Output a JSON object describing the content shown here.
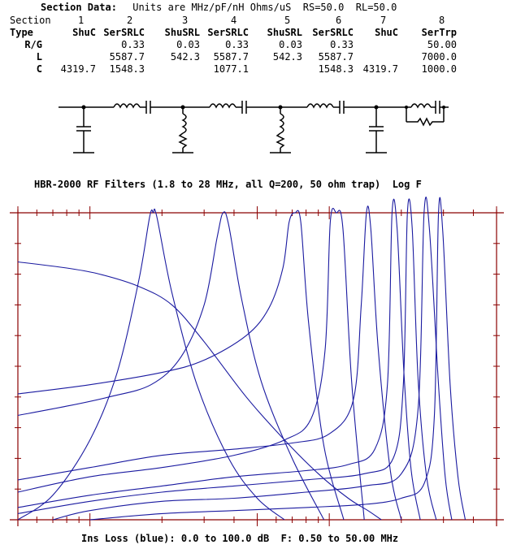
{
  "header": {
    "title_label": "Section Data:",
    "title_rest": " Units are MHz/pF/nH Ohms/uS  RS=50.0  RL=50.0"
  },
  "table": {
    "rows": [
      {
        "label": "Section",
        "cells": [
          "1",
          "2",
          "3",
          "4",
          "5",
          "6",
          "7",
          "8"
        ]
      },
      {
        "label": "Type",
        "cells": [
          "ShuC",
          "SerSRLC",
          "ShuSRL",
          "SerSRLC",
          "ShuSRL",
          "SerSRLC",
          "ShuC",
          "SerTrp"
        ]
      },
      {
        "label": "R/G",
        "cells": [
          "",
          "0.33",
          "0.03",
          "0.33",
          "0.03",
          "0.33",
          "",
          "50.00"
        ]
      },
      {
        "label": "L",
        "cells": [
          "",
          "5587.7",
          "542.3",
          "5587.7",
          "542.3",
          "5587.7",
          "",
          "7000.0"
        ]
      },
      {
        "label": "C",
        "cells": [
          "4319.7",
          "1548.3",
          "",
          "1077.1",
          "",
          "1548.3",
          "4319.7",
          "1000.0"
        ]
      }
    ]
  },
  "chart_data": {
    "type": "line",
    "title": "HBR-2000 RF Filters (1.8 to 28 MHz, all Q=200, 50 ohm trap)  Log F",
    "footer": "Ins Loss (blue): 0.0 to 100.0 dB  F: 0.50 to 50.00 MHz",
    "x_scale": "log",
    "xlim": [
      0.5,
      50.0
    ],
    "ylim": [
      0,
      100
    ],
    "ylabel_meaning": "Insertion loss (dB), 0 at top, 100 at bottom",
    "grid": false,
    "line_color": "#1a1aa0",
    "frame_color": "#8b0000",
    "series": [
      {
        "x": [
          0.5,
          0.7,
          1.0,
          1.3,
          1.6,
          1.78,
          1.84,
          1.9,
          2.2,
          2.8,
          3.8,
          5.0,
          6.5
        ],
        "y": [
          100,
          92,
          74,
          52,
          22,
          1,
          0,
          1,
          26,
          56,
          80,
          93,
          100
        ]
      },
      {
        "x": [
          0.5,
          0.8,
          1.2,
          1.8,
          2.4,
          3.0,
          3.4,
          3.6,
          3.8,
          4.3,
          5.2,
          7.0,
          9.5
        ],
        "y": [
          66,
          63,
          60,
          56,
          47,
          30,
          8,
          0,
          4,
          28,
          55,
          80,
          100
        ]
      },
      {
        "x": [
          0.5,
          1.0,
          2.0,
          3.0,
          4.5,
          5.6,
          6.4,
          6.8,
          7.2,
          7.6,
          8.2,
          9.5,
          11.5
        ],
        "y": [
          59,
          56,
          52,
          48,
          40,
          31,
          18,
          3,
          0,
          3,
          36,
          76,
          100
        ]
      },
      {
        "x": [
          0.5,
          1.0,
          2.0,
          4.0,
          6.5,
          8.4,
          9.6,
          10.1,
          10.7,
          11.4,
          12.4,
          14.0
        ],
        "y": [
          91,
          86,
          83,
          79,
          74,
          67,
          45,
          3,
          0,
          5,
          55,
          100
        ]
      },
      {
        "x": [
          0.5,
          1.0,
          2.0,
          4.0,
          7.0,
          10.0,
          12.6,
          13.6,
          14.3,
          14.9,
          16.0,
          18.0,
          20.0
        ],
        "y": [
          87,
          83,
          79,
          77,
          75,
          72,
          61,
          30,
          0,
          5,
          44,
          84,
          100
        ]
      },
      {
        "x": [
          0.5,
          1.0,
          2.0,
          4.0,
          8.0,
          12.0,
          15.5,
          17.5,
          18.3,
          19.2,
          20.5,
          22.0,
          24.0
        ],
        "y": [
          96,
          92,
          89,
          86,
          84,
          82,
          77,
          56,
          0,
          5,
          52,
          84,
          100
        ]
      },
      {
        "x": [
          0.5,
          1.0,
          2.0,
          4.0,
          8.0,
          14.0,
          18.5,
          20.4,
          21.2,
          22.2,
          23.5,
          25.5,
          28.0
        ],
        "y": [
          98,
          94,
          91,
          89,
          87,
          85,
          80,
          56,
          0,
          5,
          54,
          86,
          100
        ]
      },
      {
        "x": [
          0.7,
          1.0,
          2.0,
          4.0,
          8.0,
          14.0,
          20.0,
          23.5,
          24.9,
          26.2,
          28.5,
          30.5,
          32.5
        ],
        "y": [
          100,
          97,
          94,
          93,
          91,
          89,
          85,
          64,
          0,
          5,
          54,
          86,
          100
        ]
      },
      {
        "x": [
          1.0,
          2.0,
          4.0,
          8.0,
          14.0,
          20.0,
          25.0,
          27.5,
          28.6,
          29.8,
          32.0,
          34.5,
          37.0
        ],
        "y": [
          100,
          98,
          97,
          96,
          95,
          93,
          88,
          66,
          0,
          6,
          56,
          86,
          100
        ]
      },
      {
        "x": [
          0.5,
          0.8,
          1.1,
          1.6,
          2.2,
          3.0,
          4.5,
          6.5,
          9.0,
          12.0,
          14.5,
          16.5
        ],
        "y": [
          16,
          18,
          20,
          24,
          30,
          42,
          60,
          74,
          85,
          93,
          97,
          100
        ]
      }
    ]
  }
}
